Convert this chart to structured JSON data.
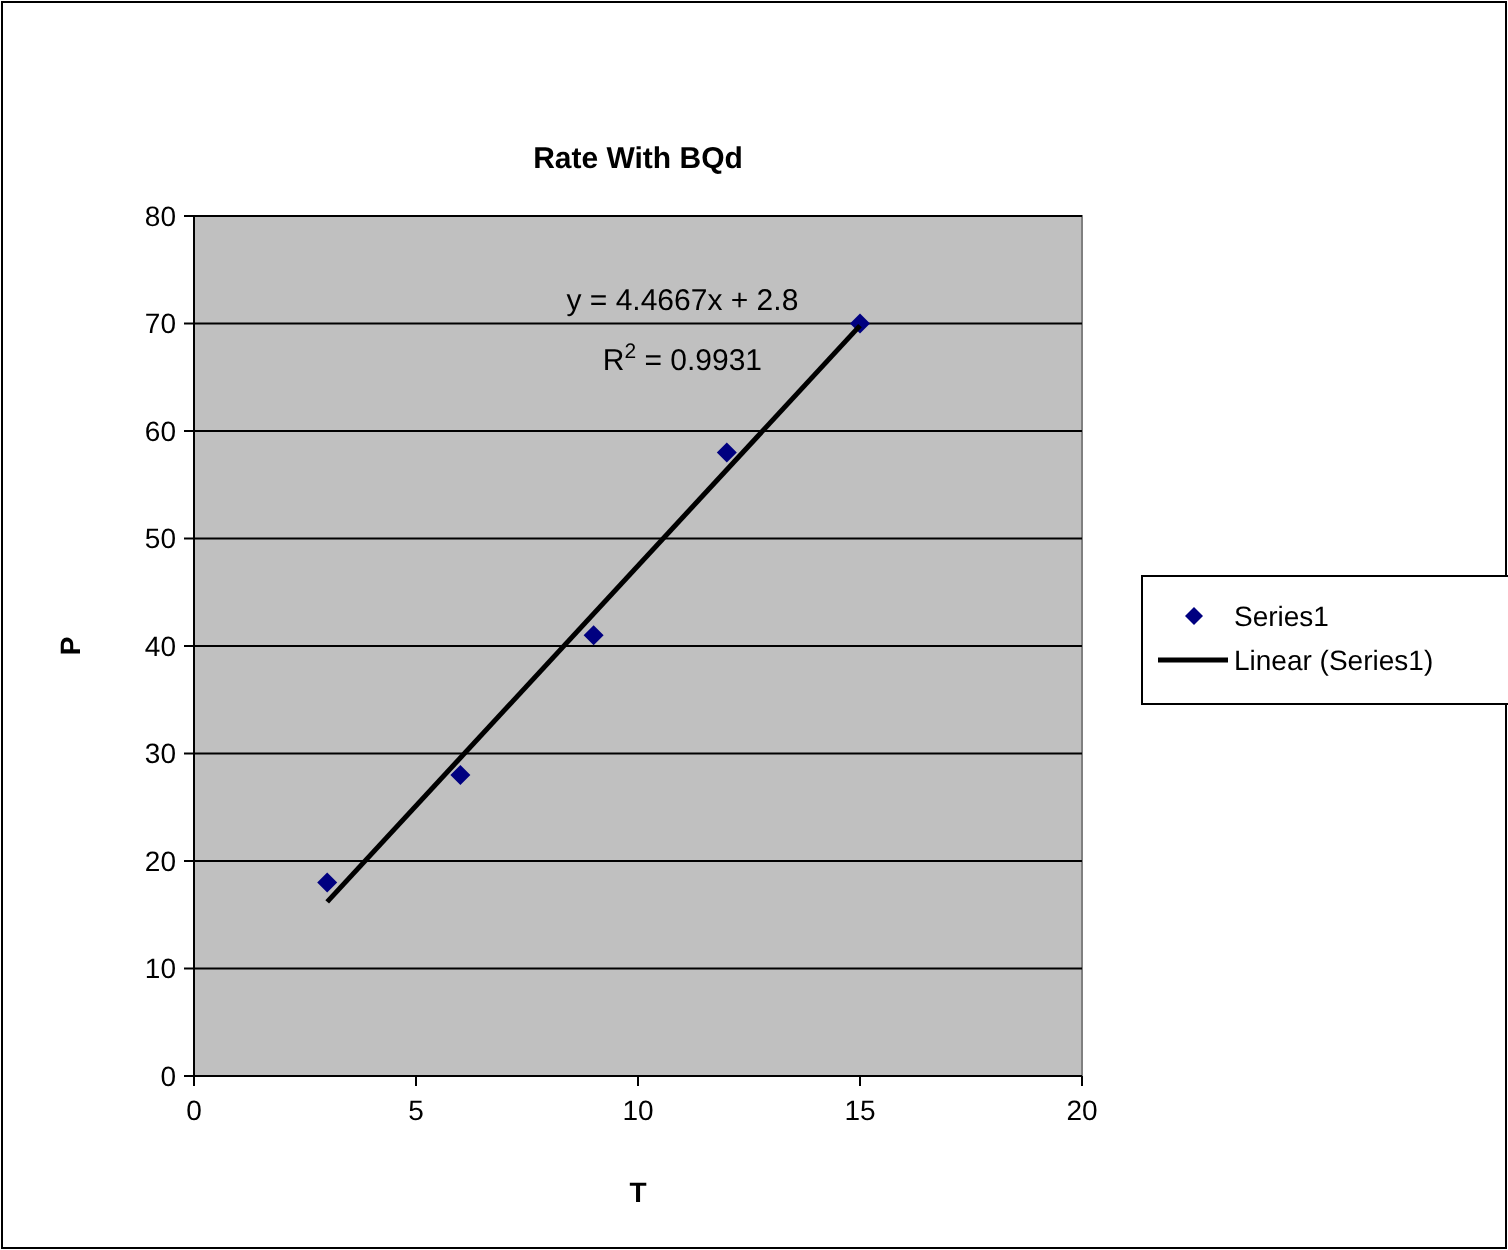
{
  "chart_data": {
    "type": "scatter",
    "title": "Rate With BQd",
    "xlabel": "T",
    "ylabel": "P",
    "x": [
      3,
      6,
      9,
      12,
      15
    ],
    "series": [
      {
        "name": "Series1",
        "color": "#000080",
        "values": [
          18,
          28,
          41,
          58,
          70
        ]
      },
      {
        "name": "Linear (Series1)",
        "type": "line",
        "color": "#000000",
        "x": [
          3,
          15
        ],
        "values": [
          16.2,
          69.8
        ],
        "marker": "none"
      }
    ],
    "xlim": [
      0,
      20
    ],
    "xticks": [
      0,
      5,
      10,
      15,
      20
    ],
    "ylim": [
      0,
      80
    ],
    "yticks": [
      0,
      10,
      20,
      30,
      40,
      50,
      60,
      70,
      80
    ],
    "grid": "y",
    "legend": "right",
    "marker": "diamond",
    "annotations": [
      "y = 4.4667x + 2.8",
      "R$^{2}$ = 0.9931"
    ]
  }
}
